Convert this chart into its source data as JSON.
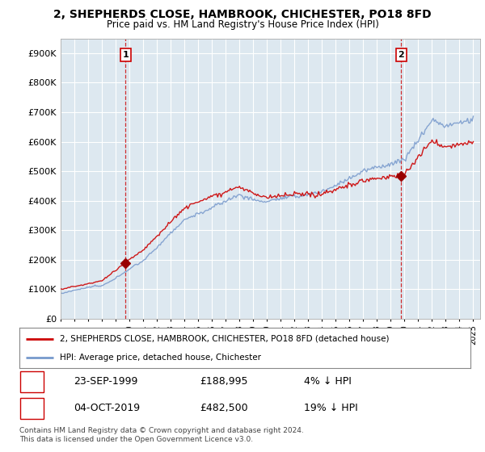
{
  "title": "2, SHEPHERDS CLOSE, HAMBROOK, CHICHESTER, PO18 8FD",
  "subtitle": "Price paid vs. HM Land Registry's House Price Index (HPI)",
  "ylabel_ticks": [
    "£0",
    "£100K",
    "£200K",
    "£300K",
    "£400K",
    "£500K",
    "£600K",
    "£700K",
    "£800K",
    "£900K"
  ],
  "ytick_values": [
    0,
    100000,
    200000,
    300000,
    400000,
    500000,
    600000,
    700000,
    800000,
    900000
  ],
  "ylim": [
    0,
    950000
  ],
  "xlim_start": 1995.0,
  "xlim_end": 2025.5,
  "point1_x": 1999.73,
  "point1_y": 188995,
  "point1_label": "1",
  "point2_x": 2019.76,
  "point2_y": 482500,
  "point2_label": "2",
  "legend_line1": "2, SHEPHERDS CLOSE, HAMBROOK, CHICHESTER, PO18 8FD (detached house)",
  "legend_line2": "HPI: Average price, detached house, Chichester",
  "table_row1_num": "1",
  "table_row1_date": "23-SEP-1999",
  "table_row1_price": "£188,995",
  "table_row1_hpi": "4% ↓ HPI",
  "table_row2_num": "2",
  "table_row2_date": "04-OCT-2019",
  "table_row2_price": "£482,500",
  "table_row2_hpi": "19% ↓ HPI",
  "footer": "Contains HM Land Registry data © Crown copyright and database right 2024.\nThis data is licensed under the Open Government Licence v3.0.",
  "line_color_red": "#cc0000",
  "line_color_blue": "#7799cc",
  "point_color_red": "#990000",
  "bg_plot": "#dde8f0",
  "background_color": "#ffffff",
  "grid_color": "#ffffff"
}
